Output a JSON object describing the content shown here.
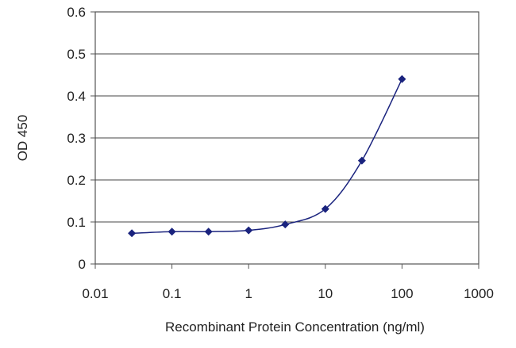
{
  "chart_data": {
    "type": "line",
    "xscale": "log",
    "xlim": [
      0.01,
      1000
    ],
    "ylim": [
      0,
      0.6
    ],
    "xticks": [
      0.01,
      0.1,
      1,
      10,
      100,
      1000
    ],
    "xtick_labels": [
      "0.01",
      "0.1",
      "1",
      "10",
      "100",
      "1000"
    ],
    "yticks": [
      0,
      0.1,
      0.2,
      0.3,
      0.4,
      0.5,
      0.6
    ],
    "ytick_labels": [
      "0",
      "0.1",
      "0.2",
      "0.3",
      "0.4",
      "0.5",
      "0.6"
    ],
    "xlabel": "Recombinant Protein Concentration (ng/ml)",
    "ylabel": "OD 450",
    "grid": "horizontal",
    "series": [
      {
        "x": [
          0.03,
          0.1,
          0.3,
          1,
          3,
          10,
          30,
          100
        ],
        "y": [
          0.073,
          0.077,
          0.077,
          0.08,
          0.094,
          0.131,
          0.246,
          0.44
        ],
        "marker": "diamond",
        "color": "#1a237e"
      }
    ]
  }
}
